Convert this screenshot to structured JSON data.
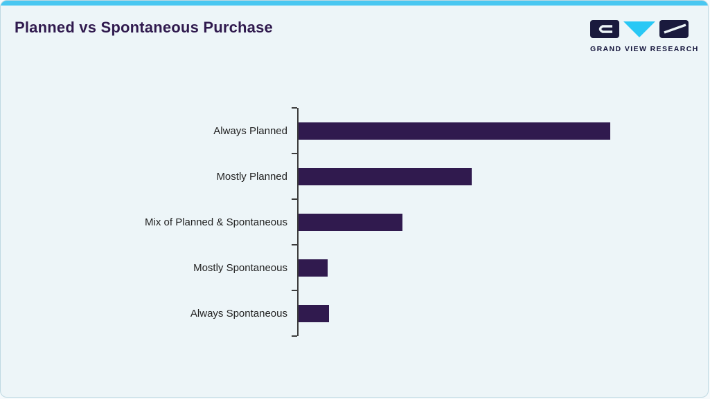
{
  "page": {
    "background_color": "#edf5f8",
    "accent_bar_color": "#49c7f1"
  },
  "header": {
    "title": "Planned vs Spontaneous Purchase",
    "title_color": "#301a4e"
  },
  "logo": {
    "text": "GRAND VIEW RESEARCH",
    "dark_color": "#1a1a3d",
    "accent_color": "#29c8f5"
  },
  "chart_data": {
    "type": "bar",
    "orientation": "horizontal",
    "title": "Planned vs Spontaneous Purchase",
    "categories": [
      "Always Planned",
      "Mostly Planned",
      "Mix of Planned & Spontaneous",
      "Mostly Spontaneous",
      "Always Spontaneous"
    ],
    "values": [
      45,
      25,
      15,
      4.2,
      4.4
    ],
    "xlabel": "",
    "ylabel": "",
    "xlim": [
      0,
      50
    ],
    "grid": false,
    "legend": false,
    "bar_color": "#301a4e",
    "axis_color": "#3c3c3c",
    "label_color": "#222222"
  }
}
